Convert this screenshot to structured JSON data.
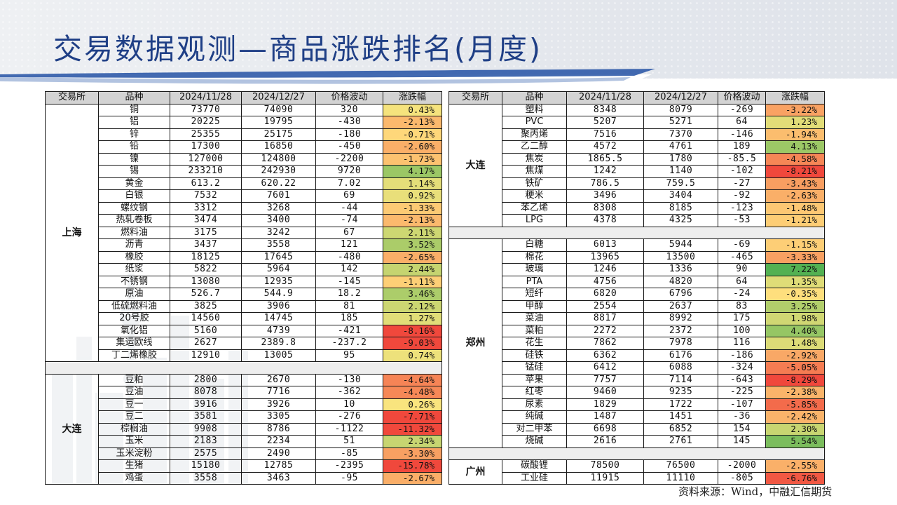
{
  "title": "交易数据观测—商品涨跌排名(月度)",
  "source": "资料来源：Wind，中融汇信期货",
  "colors": {
    "title": "#1f3f86",
    "header_bg": "#d3d3d3",
    "up_strong": "#4caf50",
    "down_strong": "#f0483c",
    "neutral": "#ffe680"
  },
  "headers": [
    "交易所",
    "品种",
    "2024/11/28",
    "2024/12/27",
    "价格波动",
    "涨跌幅"
  ],
  "left_groups": [
    {
      "exchange": "上海",
      "rows": [
        {
          "name": "铜",
          "d1": "73770",
          "d2": "74090",
          "chg": "320",
          "pct": "0.43%",
          "v": 0.43
        },
        {
          "name": "铝",
          "d1": "20225",
          "d2": "19795",
          "chg": "-430",
          "pct": "-2.13%",
          "v": -2.13
        },
        {
          "name": "锌",
          "d1": "25355",
          "d2": "25175",
          "chg": "-180",
          "pct": "-0.71%",
          "v": -0.71
        },
        {
          "name": "铅",
          "d1": "17300",
          "d2": "16850",
          "chg": "-450",
          "pct": "-2.60%",
          "v": -2.6
        },
        {
          "name": "镍",
          "d1": "127000",
          "d2": "124800",
          "chg": "-2200",
          "pct": "-1.73%",
          "v": -1.73
        },
        {
          "name": "锡",
          "d1": "233210",
          "d2": "242930",
          "chg": "9720",
          "pct": "4.17%",
          "v": 4.17
        },
        {
          "name": "黄金",
          "d1": "613.2",
          "d2": "620.22",
          "chg": "7.02",
          "pct": "1.14%",
          "v": 1.14
        },
        {
          "name": "白银",
          "d1": "7532",
          "d2": "7601",
          "chg": "69",
          "pct": "0.92%",
          "v": 0.92
        },
        {
          "name": "螺纹钢",
          "d1": "3312",
          "d2": "3268",
          "chg": "-44",
          "pct": "-1.33%",
          "v": -1.33
        },
        {
          "name": "热轧卷板",
          "d1": "3474",
          "d2": "3400",
          "chg": "-74",
          "pct": "-2.13%",
          "v": -2.13
        },
        {
          "name": "燃料油",
          "d1": "3175",
          "d2": "3242",
          "chg": "67",
          "pct": "2.11%",
          "v": 2.11
        },
        {
          "name": "沥青",
          "d1": "3437",
          "d2": "3558",
          "chg": "121",
          "pct": "3.52%",
          "v": 3.52
        },
        {
          "name": "橡胶",
          "d1": "18125",
          "d2": "17645",
          "chg": "-480",
          "pct": "-2.65%",
          "v": -2.65
        },
        {
          "name": "纸浆",
          "d1": "5822",
          "d2": "5964",
          "chg": "142",
          "pct": "2.44%",
          "v": 2.44
        },
        {
          "name": "不锈钢",
          "d1": "13080",
          "d2": "12935",
          "chg": "-145",
          "pct": "-1.11%",
          "v": -1.11
        },
        {
          "name": "原油",
          "d1": "526.7",
          "d2": "544.9",
          "chg": "18.2",
          "pct": "3.46%",
          "v": 3.46
        },
        {
          "name": "低硫燃料油",
          "d1": "3825",
          "d2": "3906",
          "chg": "81",
          "pct": "2.12%",
          "v": 2.12
        },
        {
          "name": "20号胶",
          "d1": "14560",
          "d2": "14745",
          "chg": "185",
          "pct": "1.27%",
          "v": 1.27
        },
        {
          "name": "氧化铝",
          "d1": "5160",
          "d2": "4739",
          "chg": "-421",
          "pct": "-8.16%",
          "v": -8.16
        },
        {
          "name": "集运欧线",
          "d1": "2627",
          "d2": "2389.8",
          "chg": "-237.2",
          "pct": "-9.03%",
          "v": -9.03
        },
        {
          "name": "丁二烯橡胶",
          "d1": "12910",
          "d2": "13005",
          "chg": "95",
          "pct": "0.74%",
          "v": 0.74
        }
      ]
    },
    {
      "exchange": "大连",
      "rows": [
        {
          "name": "豆粕",
          "d1": "2800",
          "d2": "2670",
          "chg": "-130",
          "pct": "-4.64%",
          "v": -4.64
        },
        {
          "name": "豆油",
          "d1": "8078",
          "d2": "7716",
          "chg": "-362",
          "pct": "-4.48%",
          "v": -4.48
        },
        {
          "name": "豆一",
          "d1": "3916",
          "d2": "3926",
          "chg": "10",
          "pct": "0.26%",
          "v": 0.26
        },
        {
          "name": "豆二",
          "d1": "3581",
          "d2": "3305",
          "chg": "-276",
          "pct": "-7.71%",
          "v": -7.71
        },
        {
          "name": "棕榈油",
          "d1": "9908",
          "d2": "8786",
          "chg": "-1122",
          "pct": "-11.32%",
          "v": -11.32
        },
        {
          "name": "玉米",
          "d1": "2183",
          "d2": "2234",
          "chg": "51",
          "pct": "2.34%",
          "v": 2.34
        },
        {
          "name": "玉米淀粉",
          "d1": "2575",
          "d2": "2490",
          "chg": "-85",
          "pct": "-3.30%",
          "v": -3.3
        },
        {
          "name": "生猪",
          "d1": "15180",
          "d2": "12785",
          "chg": "-2395",
          "pct": "-15.78%",
          "v": -15.78
        },
        {
          "name": "鸡蛋",
          "d1": "3558",
          "d2": "3463",
          "chg": "-95",
          "pct": "-2.67%",
          "v": -2.67
        }
      ]
    }
  ],
  "right_groups": [
    {
      "exchange": "大连",
      "rows": [
        {
          "name": "塑料",
          "d1": "8348",
          "d2": "8079",
          "chg": "-269",
          "pct": "-3.22%",
          "v": -3.22
        },
        {
          "name": "PVC",
          "d1": "5207",
          "d2": "5271",
          "chg": "64",
          "pct": "1.23%",
          "v": 1.23
        },
        {
          "name": "聚丙烯",
          "d1": "7516",
          "d2": "7370",
          "chg": "-146",
          "pct": "-1.94%",
          "v": -1.94
        },
        {
          "name": "乙二醇",
          "d1": "4572",
          "d2": "4761",
          "chg": "189",
          "pct": "4.13%",
          "v": 4.13
        },
        {
          "name": "焦炭",
          "d1": "1865.5",
          "d2": "1780",
          "chg": "-85.5",
          "pct": "-4.58%",
          "v": -4.58
        },
        {
          "name": "焦煤",
          "d1": "1242",
          "d2": "1140",
          "chg": "-102",
          "pct": "-8.21%",
          "v": -8.21
        },
        {
          "name": "铁矿",
          "d1": "786.5",
          "d2": "759.5",
          "chg": "-27",
          "pct": "-3.43%",
          "v": -3.43
        },
        {
          "name": "粳米",
          "d1": "3496",
          "d2": "3404",
          "chg": "-92",
          "pct": "-2.63%",
          "v": -2.63
        },
        {
          "name": "苯乙烯",
          "d1": "8308",
          "d2": "8185",
          "chg": "-123",
          "pct": "-1.48%",
          "v": -1.48
        },
        {
          "name": "LPG",
          "d1": "4378",
          "d2": "4325",
          "chg": "-53",
          "pct": "-1.21%",
          "v": -1.21
        }
      ]
    },
    {
      "exchange": "郑州",
      "rows": [
        {
          "name": "白糖",
          "d1": "6013",
          "d2": "5944",
          "chg": "-69",
          "pct": "-1.15%",
          "v": -1.15
        },
        {
          "name": "棉花",
          "d1": "13965",
          "d2": "13500",
          "chg": "-465",
          "pct": "-3.33%",
          "v": -3.33
        },
        {
          "name": "玻璃",
          "d1": "1246",
          "d2": "1336",
          "chg": "90",
          "pct": "7.22%",
          "v": 7.22
        },
        {
          "name": "PTA",
          "d1": "4756",
          "d2": "4820",
          "chg": "64",
          "pct": "1.35%",
          "v": 1.35
        },
        {
          "name": "短纤",
          "d1": "6820",
          "d2": "6796",
          "chg": "-24",
          "pct": "-0.35%",
          "v": -0.35
        },
        {
          "name": "甲醇",
          "d1": "2554",
          "d2": "2637",
          "chg": "83",
          "pct": "3.25%",
          "v": 3.25
        },
        {
          "name": "菜油",
          "d1": "8817",
          "d2": "8992",
          "chg": "175",
          "pct": "1.98%",
          "v": 1.98
        },
        {
          "name": "菜粕",
          "d1": "2272",
          "d2": "2372",
          "chg": "100",
          "pct": "4.40%",
          "v": 4.4
        },
        {
          "name": "花生",
          "d1": "7862",
          "d2": "7978",
          "chg": "116",
          "pct": "1.48%",
          "v": 1.48
        },
        {
          "name": "硅铁",
          "d1": "6362",
          "d2": "6176",
          "chg": "-186",
          "pct": "-2.92%",
          "v": -2.92
        },
        {
          "name": "锰硅",
          "d1": "6412",
          "d2": "6088",
          "chg": "-324",
          "pct": "-5.05%",
          "v": -5.05
        },
        {
          "name": "苹果",
          "d1": "7757",
          "d2": "7114",
          "chg": "-643",
          "pct": "-8.29%",
          "v": -8.29
        },
        {
          "name": "红枣",
          "d1": "9460",
          "d2": "9235",
          "chg": "-225",
          "pct": "-2.38%",
          "v": -2.38
        },
        {
          "name": "尿素",
          "d1": "1829",
          "d2": "1722",
          "chg": "-107",
          "pct": "-5.85%",
          "v": -5.85
        },
        {
          "name": "纯碱",
          "d1": "1487",
          "d2": "1451",
          "chg": "-36",
          "pct": "-2.42%",
          "v": -2.42
        },
        {
          "name": "对二甲苯",
          "d1": "6698",
          "d2": "6852",
          "chg": "154",
          "pct": "2.30%",
          "v": 2.3
        },
        {
          "name": "烧碱",
          "d1": "2616",
          "d2": "2761",
          "chg": "145",
          "pct": "5.54%",
          "v": 5.54
        }
      ]
    },
    {
      "exchange": "广州",
      "rows": [
        {
          "name": "碳酸锂",
          "d1": "78500",
          "d2": "76500",
          "chg": "-2000",
          "pct": "-2.55%",
          "v": -2.55
        },
        {
          "name": "工业硅",
          "d1": "11915",
          "d2": "11110",
          "chg": "-805",
          "pct": "-6.76%",
          "v": -6.76
        }
      ]
    }
  ]
}
